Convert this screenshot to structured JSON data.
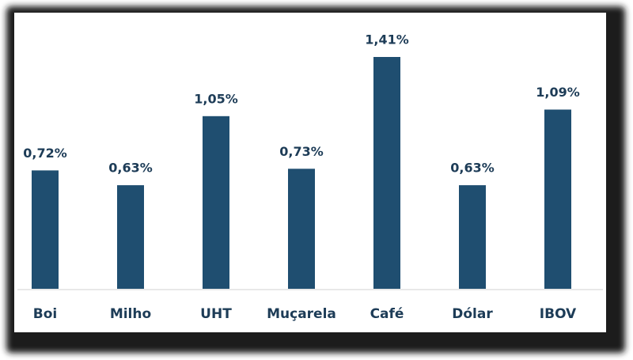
{
  "chart_data": {
    "type": "bar",
    "categories": [
      "Boi",
      "Milho",
      "UHT",
      "Muçarela",
      "Café",
      "Dólar",
      "IBOV"
    ],
    "values": [
      0.72,
      0.63,
      1.05,
      0.73,
      1.41,
      0.63,
      1.09
    ],
    "value_labels": [
      "0,72%",
      "0,63%",
      "1,05%",
      "0,73%",
      "1,41%",
      "0,63%",
      "1,09%"
    ],
    "color": "#1f4e70"
  }
}
